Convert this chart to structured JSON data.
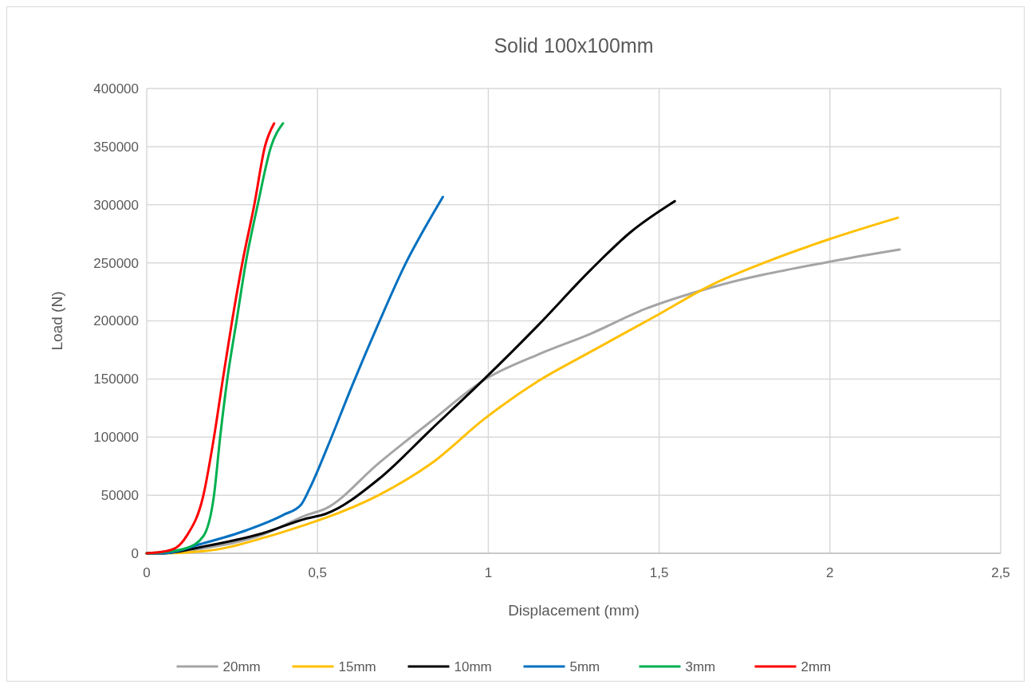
{
  "chart_data": {
    "type": "line",
    "title": "Solid 100x100mm",
    "xlabel": "Displacement (mm)",
    "ylabel": "Load (N)",
    "xlim": [
      0,
      2.5
    ],
    "xticks": [
      0,
      {
        "value": 0.5,
        "label": "0,5"
      },
      1,
      {
        "value": 1.5,
        "label": "1,5"
      },
      2,
      {
        "value": 2.5,
        "label": "2,5"
      }
    ],
    "ylim": [
      0,
      400000
    ],
    "yticks": [
      0,
      50000,
      100000,
      150000,
      200000,
      250000,
      300000,
      350000,
      400000
    ],
    "grid": true,
    "legend": "bottom",
    "marker": "none",
    "line_style": "solid",
    "series": [
      {
        "name": "20mm",
        "color": "#a5a5a5",
        "x": [
          0,
          0.05,
          0.16,
          0.34,
          0.469,
          0.523,
          0.679,
          0.834,
          0.99,
          1.145,
          1.3,
          1.457,
          1.65,
          2.0,
          2.204
        ],
        "values": [
          0,
          0,
          4000,
          16000,
          33000,
          38400,
          77500,
          114000,
          149600,
          171000,
          189000,
          210000,
          228500,
          251000,
          261400
        ]
      },
      {
        "name": "15mm",
        "color": "#ffc000",
        "x": [
          0,
          0.05,
          0.2,
          0.35,
          0.469,
          0.523,
          0.679,
          0.834,
          0.99,
          1.145,
          1.3,
          1.495,
          1.65,
          1.807,
          2.0,
          2.199
        ],
        "values": [
          0,
          0,
          3000,
          14000,
          25000,
          30400,
          50000,
          77500,
          116000,
          148000,
          173500,
          205000,
          230500,
          250000,
          270500,
          288800
        ]
      },
      {
        "name": "10mm",
        "color": "#000000",
        "x": [
          0,
          0.05,
          0.161,
          0.337,
          0.469,
          0.523,
          0.679,
          0.834,
          0.99,
          1.145,
          1.3,
          1.417,
          1.546
        ],
        "values": [
          0,
          0,
          5500,
          17000,
          30000,
          33800,
          63800,
          107000,
          150500,
          196000,
          244000,
          276500,
          303000
        ]
      },
      {
        "name": "5mm",
        "color": "#0070c0",
        "x": [
          0,
          0.05,
          0.161,
          0.293,
          0.4,
          0.452,
          0.478,
          0.53,
          0.601,
          0.679,
          0.759,
          0.82,
          0.867
        ],
        "values": [
          0,
          0,
          8200,
          19900,
          33000,
          41900,
          56300,
          92000,
          144000,
          198000,
          250000,
          283000,
          306700
        ]
      },
      {
        "name": "3mm",
        "color": "#00b050",
        "x": [
          0,
          0.05,
          0.117,
          0.166,
          0.197,
          0.215,
          0.236,
          0.263,
          0.29,
          0.325,
          0.364,
          0.399
        ],
        "values": [
          0,
          1000,
          4500,
          14800,
          50000,
          100000,
          150000,
          200000,
          250000,
          300000,
          350000,
          370000
        ]
      },
      {
        "name": "2mm",
        "color": "#ff0000",
        "x": [
          0,
          0.05,
          0.087,
          0.117,
          0.166,
          0.197,
          0.223,
          0.25,
          0.28,
          0.315,
          0.346,
          0.373
        ],
        "values": [
          0,
          1500,
          5000,
          15000,
          50000,
          100000,
          150000,
          200000,
          250000,
          300000,
          350000,
          370000
        ]
      }
    ]
  }
}
